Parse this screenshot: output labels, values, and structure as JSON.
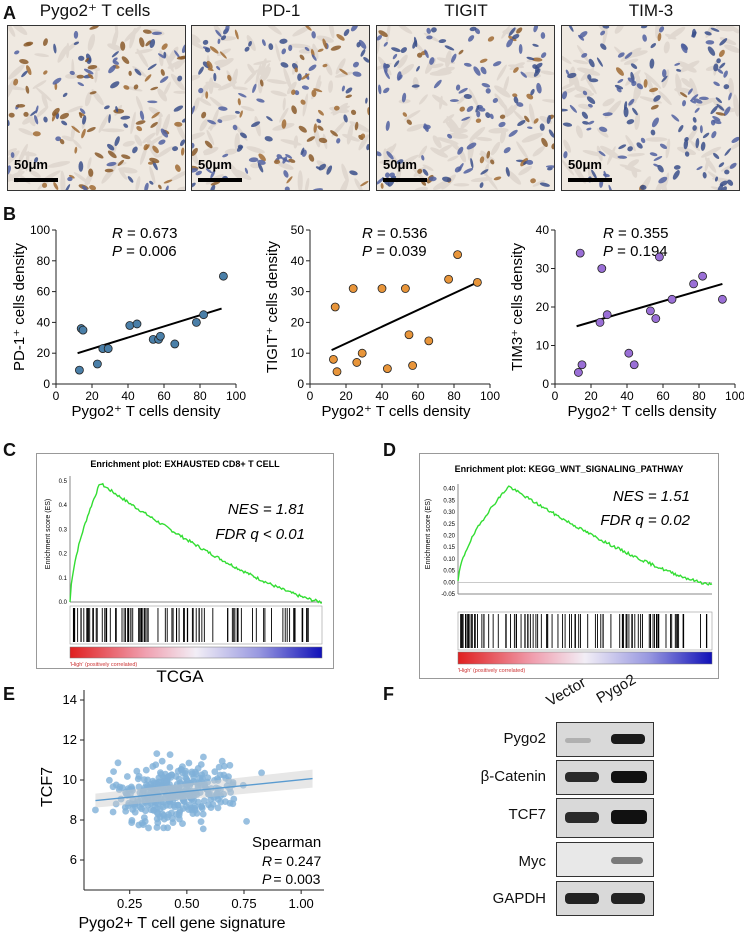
{
  "panels": {
    "A": "A",
    "B": "B",
    "C": "C",
    "D": "D",
    "E": "E",
    "F": "F"
  },
  "panel_a": {
    "titles": [
      "Pygo2⁺ T cells",
      "PD-1",
      "TIGIT",
      "TIM-3"
    ],
    "scale_bar": "50μm"
  },
  "chart_data": [
    {
      "type": "scatter",
      "id": "pd1",
      "xlabel": "Pygo2⁺ T cells density",
      "ylabel": "PD-1⁺ cells density",
      "xlim": [
        0,
        100
      ],
      "ylim": [
        0,
        100
      ],
      "xticks": [
        "0",
        "20",
        "40",
        "60",
        "80",
        "100"
      ],
      "yticks": [
        "0",
        "20",
        "40",
        "60",
        "80",
        "100"
      ],
      "color": "#4a7fa8",
      "x": [
        13,
        14,
        15,
        23,
        26,
        29,
        41,
        45,
        54,
        57,
        58,
        66,
        78,
        82,
        93
      ],
      "y": [
        9,
        36,
        35,
        13,
        23,
        23,
        38,
        39,
        29,
        29,
        31,
        26,
        40,
        45,
        70
      ],
      "fit": [
        [
          12,
          20
        ],
        [
          92,
          49
        ]
      ],
      "stats": {
        "r_label": "R",
        "r_value": " = 0.673",
        "p_label": "P",
        "p_value": " = 0.006"
      }
    },
    {
      "type": "scatter",
      "id": "tigit",
      "xlabel": "Pygo2⁺ T cells density",
      "ylabel": "TIGIT⁺ cells density",
      "xlim": [
        0,
        100
      ],
      "ylim": [
        0,
        50
      ],
      "xticks": [
        "0",
        "20",
        "40",
        "60",
        "80",
        "100"
      ],
      "yticks": [
        "0",
        "10",
        "20",
        "30",
        "40",
        "50"
      ],
      "color": "#e8953a",
      "x": [
        13,
        14,
        15,
        24,
        26,
        29,
        40,
        43,
        53,
        55,
        57,
        66,
        77,
        82,
        93
      ],
      "y": [
        8,
        25,
        4,
        31,
        7,
        10,
        31,
        5,
        31,
        16,
        6,
        14,
        34,
        42,
        33
      ],
      "fit": [
        [
          12,
          11
        ],
        [
          93,
          33
        ]
      ],
      "stats": {
        "r_label": "R",
        "r_value": " = 0.536",
        "p_label": "P",
        "p_value": " = 0.039"
      }
    },
    {
      "type": "scatter",
      "id": "tim3",
      "xlabel": "Pygo2⁺ T cells density",
      "ylabel": "TIM3⁺ cells density",
      "xlim": [
        0,
        100
      ],
      "ylim": [
        0,
        40
      ],
      "xticks": [
        "0",
        "20",
        "40",
        "60",
        "80",
        "100"
      ],
      "yticks": [
        "0",
        "10",
        "20",
        "30",
        "40"
      ],
      "color": "#9a6fd6",
      "x": [
        13,
        14,
        15,
        25,
        26,
        29,
        41,
        44,
        53,
        56,
        58,
        65,
        77,
        82,
        93
      ],
      "y": [
        3,
        34,
        5,
        16,
        30,
        18,
        8,
        5,
        19,
        17,
        33,
        22,
        26,
        28,
        22
      ],
      "fit": [
        [
          12,
          15
        ],
        [
          93,
          26
        ]
      ],
      "stats": {
        "r_label": "R",
        "r_value": " = 0.355",
        "p_label": "P",
        "p_value": " = 0.194"
      }
    },
    {
      "type": "scatter",
      "id": "tcga",
      "title": "TCGA",
      "xlabel": "Pygo2+ T cell gene signature",
      "ylabel": "TCF7",
      "xlim": [
        0.05,
        1.1
      ],
      "ylim": [
        4.5,
        14.5
      ],
      "xticks": [
        "0.25",
        "0.50",
        "0.75",
        "1.00"
      ],
      "yticks": [
        "6",
        "8",
        "10",
        "12",
        "14"
      ],
      "color": "#7fb0d8",
      "n_points": 360,
      "fit": [
        [
          0.1,
          8.97
        ],
        [
          1.05,
          10.07
        ]
      ],
      "stats": {
        "method": "Spearman",
        "r_label": "R",
        "r_value": "= 0.247",
        "p_label": "P",
        "p_value": "= 0.003"
      }
    }
  ],
  "gsea": [
    {
      "title": "Enrichment plot: EXHAUSTED CD8+ T CELL",
      "ylabel": "Enrichment score (ES)",
      "yticks": [
        "0.5",
        "0.4",
        "0.3",
        "0.2",
        "0.1",
        "0.0"
      ],
      "nes": "NES = 1.81",
      "fdr": "FDR q < 0.01",
      "footer": "'High' (positively correlated)"
    },
    {
      "title": "Enrichment plot: KEGG_WNT_SIGNALING_PATHWAY",
      "ylabel": "Enrichment score (ES)",
      "yticks": [
        "0.40",
        "0.35",
        "0.30",
        "0.25",
        "0.20",
        "0.15",
        "0.10",
        "0.05",
        "0.00",
        "-0.05"
      ],
      "nes": "NES = 1.51",
      "fdr": "FDR q = 0.02",
      "footer": "'High' (positively correlated)"
    }
  ],
  "western": {
    "lanes": [
      "Vector",
      "Pygo2"
    ],
    "proteins": [
      "Pygo2",
      "β-Catenin",
      "TCF7",
      "Myc",
      "GAPDH"
    ]
  }
}
